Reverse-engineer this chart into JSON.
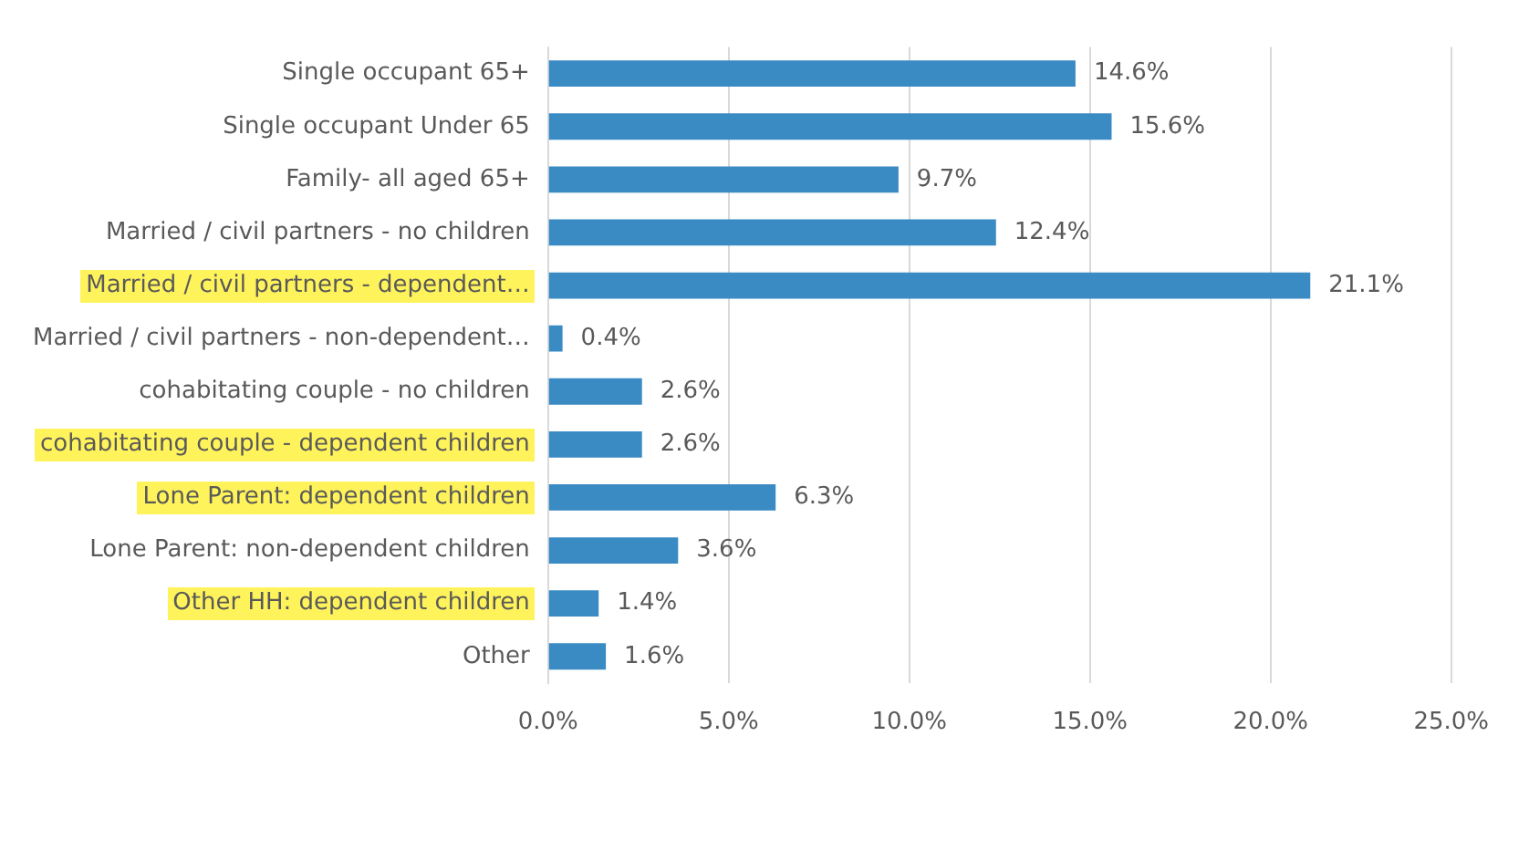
{
  "chart_data": {
    "type": "bar",
    "orientation": "horizontal",
    "categories": [
      "Single occupant 65+",
      "Single occupant Under 65",
      "Family- all aged 65+",
      "Married / civil partners - no children",
      "Married / civil partners - dependent…",
      "Married / civil partners - non-dependent…",
      "cohabitating couple - no children",
      "cohabitating couple - dependent children",
      "Lone Parent: dependent children",
      "Lone Parent: non-dependent children",
      "Other HH: dependent children",
      "Other"
    ],
    "values": [
      14.6,
      15.6,
      9.7,
      12.4,
      21.1,
      0.4,
      2.6,
      2.6,
      6.3,
      3.6,
      1.4,
      1.6
    ],
    "value_labels": [
      "14.6%",
      "15.6%",
      "9.7%",
      "12.4%",
      "21.1%",
      "0.4%",
      "2.6%",
      "2.6%",
      "6.3%",
      "3.6%",
      "1.4%",
      "1.6%"
    ],
    "color": "#3a8ac4",
    "xlim": [
      0,
      25
    ],
    "xticks": [
      {
        "value": 0,
        "label": "0.0%"
      },
      {
        "value": 5,
        "label": "5.0%"
      },
      {
        "value": 10,
        "label": "10.0%"
      },
      {
        "value": 15,
        "label": "15.0%"
      },
      {
        "value": 20,
        "label": "20.0%"
      },
      {
        "value": 25,
        "label": "25.0%"
      }
    ],
    "grid": "x",
    "legend": false
  }
}
